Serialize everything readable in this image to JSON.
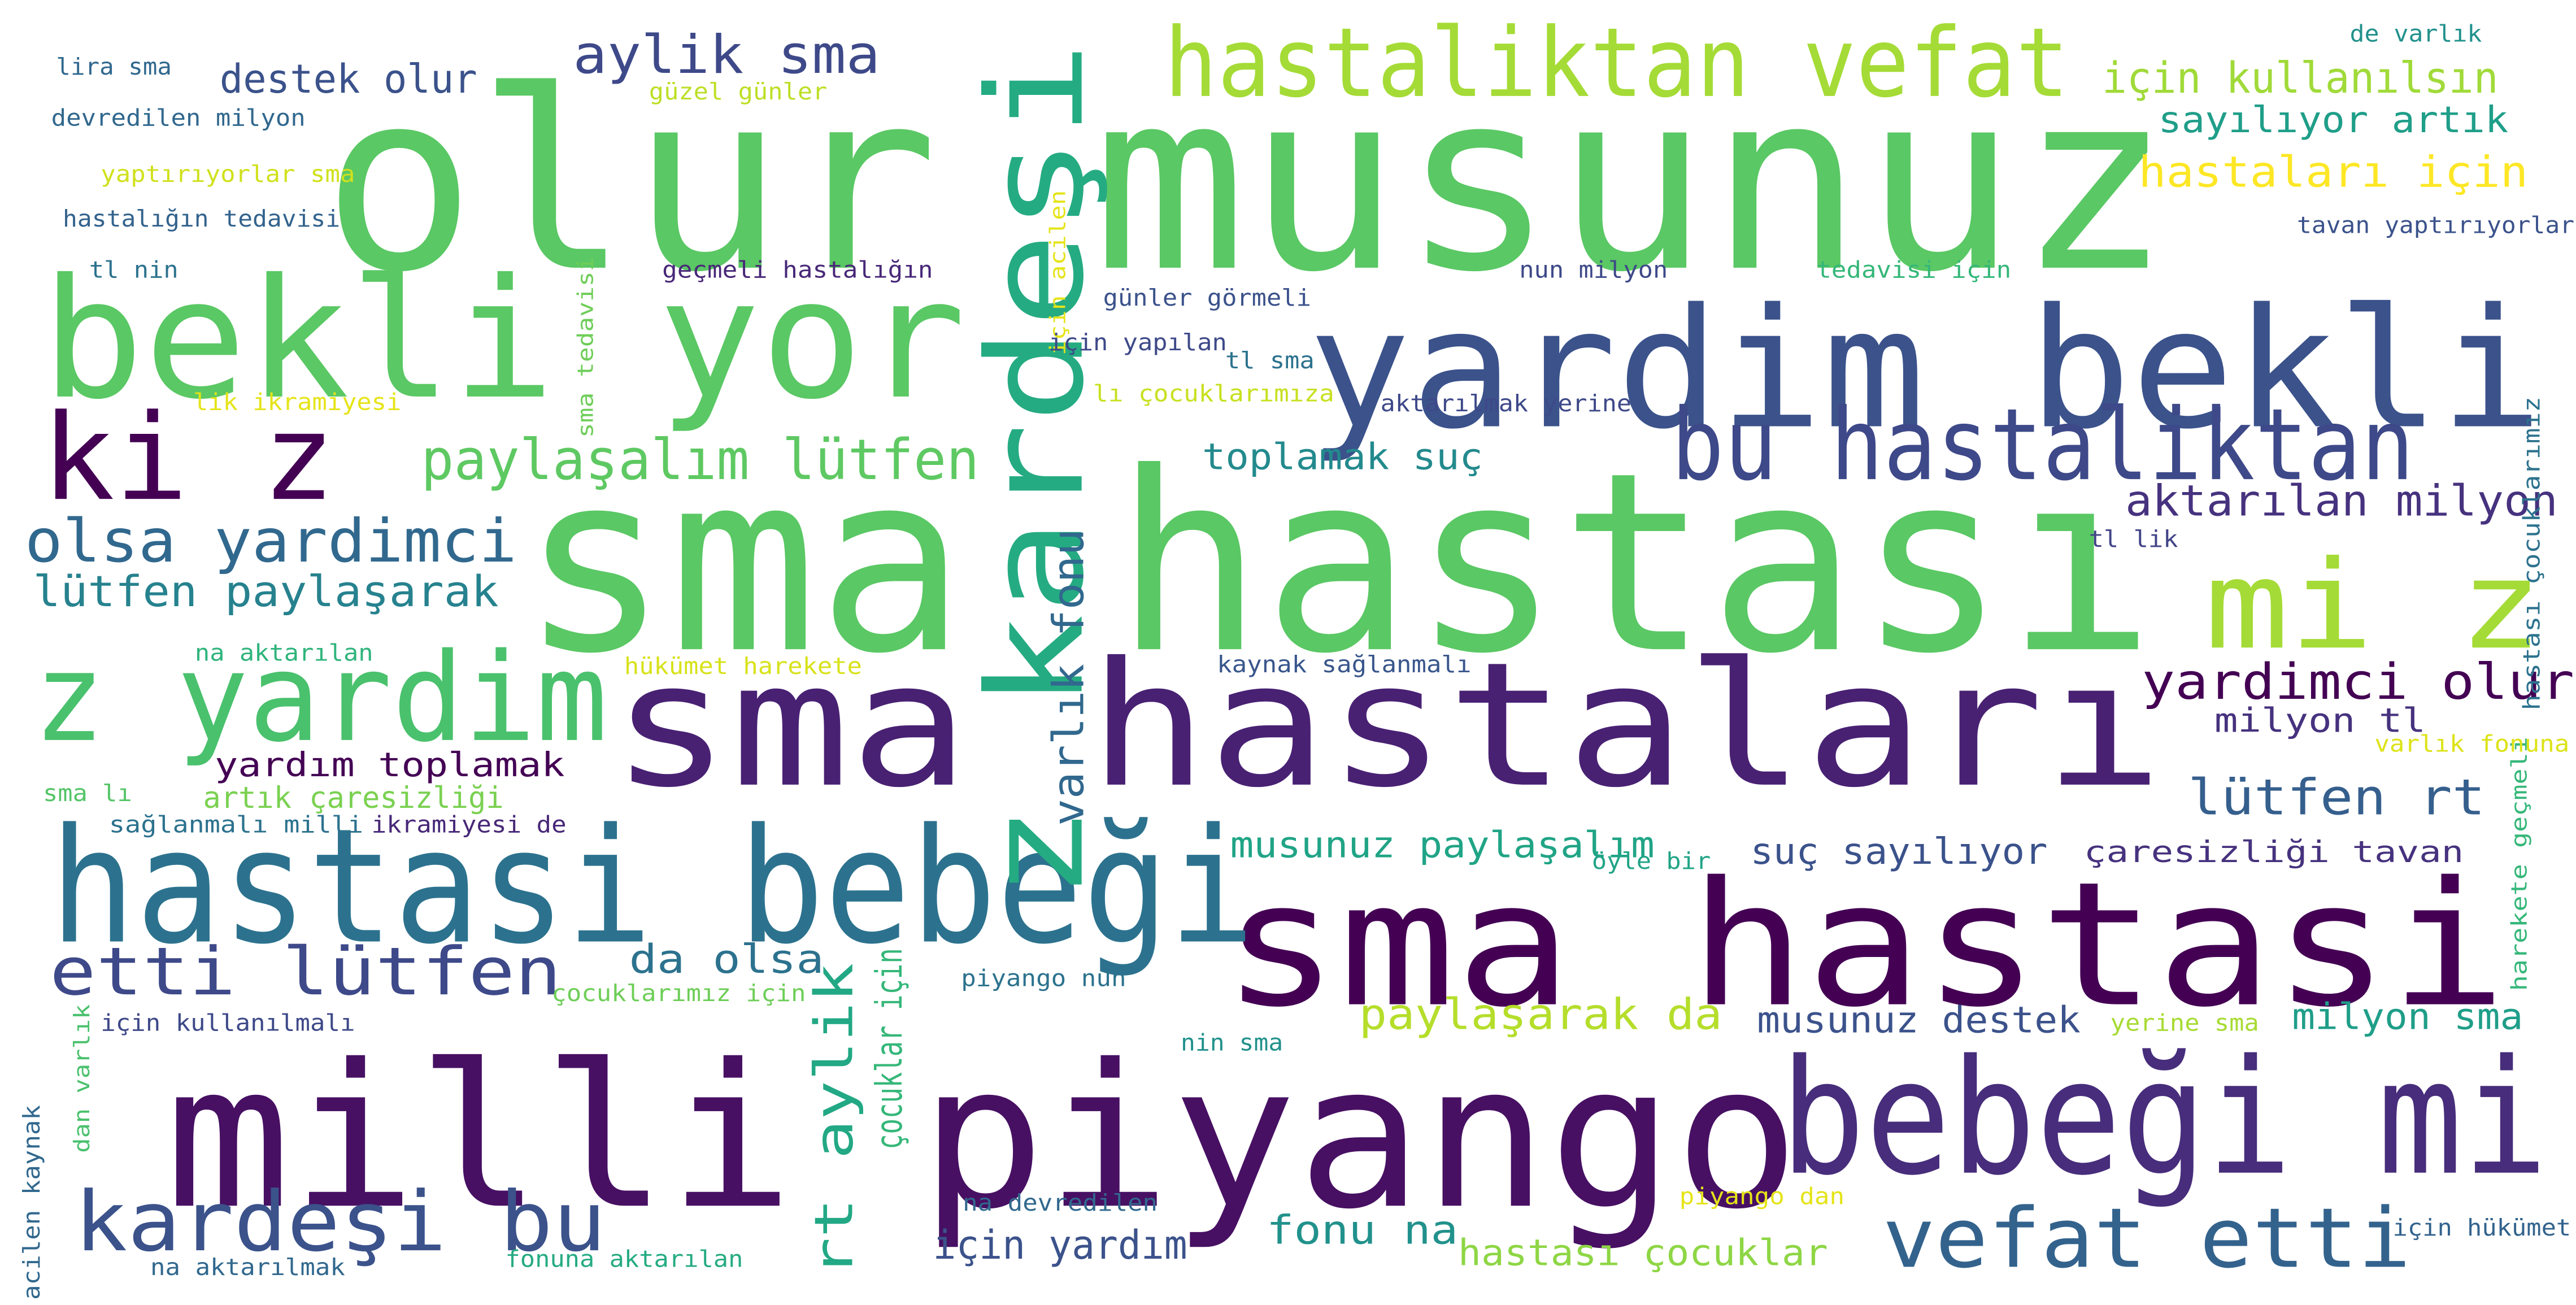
{
  "background": "#ffffff",
  "words": [
    {
      "text": "olur musunuz",
      "color": "#5ac864"
    },
    {
      "text": "sma hastası",
      "color": "#5ac864"
    },
    {
      "text": "yardim bekli",
      "color": "#3b528b"
    },
    {
      "text": "bekli yor",
      "color": "#5ac864"
    },
    {
      "text": "sma hastaları",
      "color": "#482173"
    },
    {
      "text": "sma hastasi",
      "color": "#440154"
    },
    {
      "text": "milli piyango",
      "color": "#471063"
    },
    {
      "text": "hastasi bebeği",
      "color": "#2c728e"
    },
    {
      "text": "bebeği mi",
      "color": "#472d7b"
    },
    {
      "text": "hastaliktan vefat",
      "color": "#a5db36"
    },
    {
      "text": "z kardeşi",
      "color": "#25ab82"
    },
    {
      "text": "bu hastaliktan",
      "color": "#3e4989"
    },
    {
      "text": "mi z",
      "color": "#a5db36"
    },
    {
      "text": "z yardim",
      "color": "#4ac16d"
    },
    {
      "text": "ki z",
      "color": "#440154"
    },
    {
      "text": "vefat etti",
      "color": "#33638d"
    },
    {
      "text": "kardeşi bu",
      "color": "#3b528b"
    },
    {
      "text": "etti lütfen",
      "color": "#3e4989"
    },
    {
      "text": "olsa yardimci",
      "color": "#31688e"
    },
    {
      "text": "paylaşalım lütfen",
      "color": "#5ec962"
    },
    {
      "text": "lütfen paylaşarak",
      "color": "#26828e"
    },
    {
      "text": "aylik sma",
      "color": "#3e4989"
    },
    {
      "text": "destek olur",
      "color": "#3b528b"
    },
    {
      "text": "için kullanılsın",
      "color": "#a0da39"
    },
    {
      "text": "sayılıyor artık",
      "color": "#1f9e89"
    },
    {
      "text": "hastaları için",
      "color": "#fde725"
    },
    {
      "text": "aktarılan milyon",
      "color": "#46327e"
    },
    {
      "text": "yardimci olur",
      "color": "#440154"
    },
    {
      "text": "milyon tl",
      "color": "#46327e"
    },
    {
      "text": "lütfen rt",
      "color": "#355f8d"
    },
    {
      "text": "çaresizliği tavan",
      "color": "#46327e"
    },
    {
      "text": "suç sayılıyor",
      "color": "#3b528b"
    },
    {
      "text": "musunuz paylaşalım",
      "color": "#20a486"
    },
    {
      "text": "varlık fonu",
      "color": "#31688e"
    },
    {
      "text": "rt aylik",
      "color": "#22a884"
    },
    {
      "text": "çocuklar için",
      "color": "#35b779"
    },
    {
      "text": "toplamak suç",
      "color": "#238a8d"
    },
    {
      "text": "paylaşarak da",
      "color": "#b5de2b"
    },
    {
      "text": "musunuz destek",
      "color": "#3b528b"
    },
    {
      "text": "milyon sma",
      "color": "#1f9e89"
    },
    {
      "text": "fonu na",
      "color": "#21918c"
    },
    {
      "text": "hastası çocuklar",
      "color": "#8ed645"
    },
    {
      "text": "için yardım",
      "color": "#3b528b"
    },
    {
      "text": "yardım toplamak",
      "color": "#440154"
    },
    {
      "text": "artık çaresizliği",
      "color": "#7ad151"
    },
    {
      "text": "da olsa",
      "color": "#2c728e"
    },
    {
      "text": "lira sma",
      "color": "#31688e"
    },
    {
      "text": "güzel günler",
      "color": "#bddf26"
    },
    {
      "text": "devredilen milyon",
      "color": "#31688e"
    },
    {
      "text": "yaptırıyorlar sma",
      "color": "#d0e11c"
    },
    {
      "text": "hastalığın tedavisi",
      "color": "#33638d"
    },
    {
      "text": "tl nin",
      "color": "#2c728e"
    },
    {
      "text": "sma tedavisi",
      "color": "#6ece58"
    },
    {
      "text": "geçmeli hastalığın",
      "color": "#482878"
    },
    {
      "text": "için acilen",
      "color": "#e5e419"
    },
    {
      "text": "günler görmeli",
      "color": "#3b528b"
    },
    {
      "text": "için yapılan",
      "color": "#3e4989"
    },
    {
      "text": "tl sma",
      "color": "#2c728e"
    },
    {
      "text": "lı çocuklarımıza",
      "color": "#c8e020"
    },
    {
      "text": "nun milyon",
      "color": "#3e4989"
    },
    {
      "text": "tedavisi için",
      "color": "#35b779"
    },
    {
      "text": "aktarılmak yerine",
      "color": "#3e4989"
    },
    {
      "text": "de varlık",
      "color": "#21918c"
    },
    {
      "text": "tavan yaptırıyorlar",
      "color": "#3b528b"
    },
    {
      "text": "tl lik",
      "color": "#414487"
    },
    {
      "text": "hastası çocuklarımız",
      "color": "#2c728e"
    },
    {
      "text": "harekete geçmeli",
      "color": "#35b779"
    },
    {
      "text": "varlık fonuna",
      "color": "#dde318"
    },
    {
      "text": "lik ikramiyesi",
      "color": "#e5e419"
    },
    {
      "text": "na aktarılan",
      "color": "#2fb47c"
    },
    {
      "text": "hükümet harekete",
      "color": "#d8e219"
    },
    {
      "text": "kaynak sağlanmalı",
      "color": "#39568c"
    },
    {
      "text": "sma lı",
      "color": "#54c568"
    },
    {
      "text": "sağlanmalı milli",
      "color": "#2c728e"
    },
    {
      "text": "ikramiyesi de",
      "color": "#482878"
    },
    {
      "text": "öyle bir",
      "color": "#20a486"
    },
    {
      "text": "çocuklarımız için",
      "color": "#6ece58"
    },
    {
      "text": "piyango nun",
      "color": "#2c728e"
    },
    {
      "text": "için kullanılmalı",
      "color": "#3e4989"
    },
    {
      "text": "dan varlık",
      "color": "#4ac16d"
    },
    {
      "text": "acilen kaynak",
      "color": "#31688e"
    },
    {
      "text": "nin sma",
      "color": "#21918c"
    },
    {
      "text": "na devredilen",
      "color": "#31688e"
    },
    {
      "text": "piyango dan",
      "color": "#e5e419"
    },
    {
      "text": "yerine sma",
      "color": "#a8db34"
    },
    {
      "text": "için hükümet",
      "color": "#33638d"
    },
    {
      "text": "na aktarılmak",
      "color": "#31688e"
    },
    {
      "text": "fonuna aktarılan",
      "color": "#25ab82"
    }
  ]
}
